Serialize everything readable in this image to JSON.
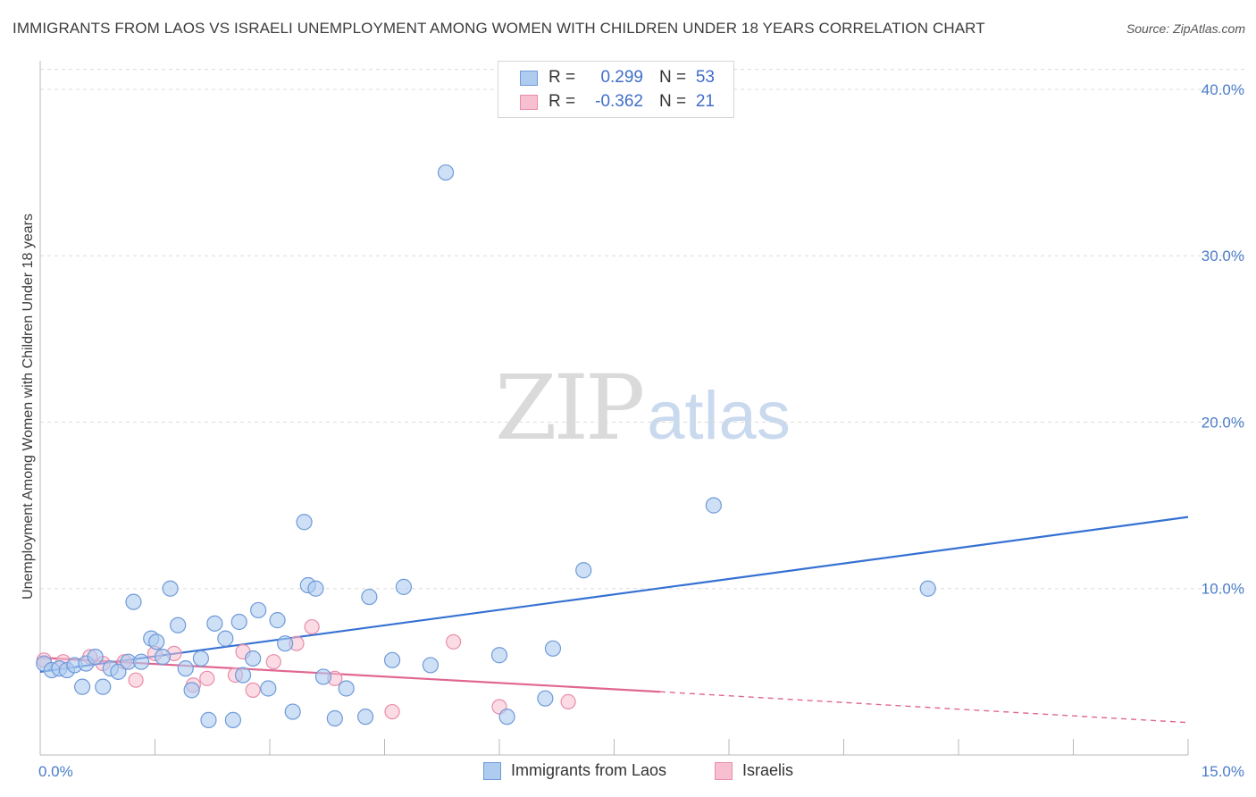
{
  "title": "IMMIGRANTS FROM LAOS VS ISRAELI UNEMPLOYMENT AMONG WOMEN WITH CHILDREN UNDER 18 YEARS CORRELATION CHART",
  "source": "Source: ZipAtlas.com",
  "watermark": {
    "left": "ZIP",
    "right": "atlas"
  },
  "legend": {
    "rows": [
      {
        "r_label": "R =",
        "r_value": "0.299",
        "n_label": "N =",
        "n_value": "53"
      },
      {
        "r_label": "R =",
        "r_value": "-0.362",
        "n_label": "N =",
        "n_value": "21"
      }
    ]
  },
  "colors": {
    "laos_fill": "#aecbf0",
    "laos_stroke": "#6f9ad9",
    "laos_line": "#3571d3",
    "isr_fill": "#f7bfd0",
    "isr_stroke": "#e88daa",
    "isr_line": "#e0678f",
    "grid": "#dcdcdc",
    "tick_text": "#4a7cc9"
  },
  "chart_data": {
    "type": "scatter",
    "title": "IMMIGRANTS FROM LAOS VS ISRAELI UNEMPLOYMENT AMONG WOMEN WITH CHILDREN UNDER 18 YEARS CORRELATION CHART",
    "xlabel": "",
    "ylabel": "Unemployment Among Women with Children Under 18 years",
    "xlim": [
      0,
      15
    ],
    "ylim": [
      0,
      41.5
    ],
    "x_tick_labels": [
      "0.0%",
      "15.0%"
    ],
    "y_ticks": [
      10,
      20,
      30,
      40
    ],
    "y_tick_labels": [
      "10.0%",
      "20.0%",
      "30.0%",
      "40.0%"
    ],
    "grid": true,
    "legend_position": "top-center",
    "series": [
      {
        "name": "Immigrants from Laos",
        "points": [
          [
            0.05,
            5.5
          ],
          [
            0.15,
            5.1
          ],
          [
            0.25,
            5.2
          ],
          [
            0.35,
            5.1
          ],
          [
            0.45,
            5.4
          ],
          [
            0.55,
            4.1
          ],
          [
            0.6,
            5.5
          ],
          [
            0.72,
            5.9
          ],
          [
            0.82,
            4.1
          ],
          [
            0.92,
            5.2
          ],
          [
            1.02,
            5.0
          ],
          [
            1.15,
            5.6
          ],
          [
            1.22,
            9.2
          ],
          [
            1.32,
            5.6
          ],
          [
            1.45,
            7.0
          ],
          [
            1.52,
            6.8
          ],
          [
            1.6,
            5.9
          ],
          [
            1.7,
            10.0
          ],
          [
            1.8,
            7.8
          ],
          [
            1.9,
            5.2
          ],
          [
            1.98,
            3.9
          ],
          [
            2.1,
            5.8
          ],
          [
            2.2,
            2.1
          ],
          [
            2.28,
            7.9
          ],
          [
            2.42,
            7.0
          ],
          [
            2.52,
            2.1
          ],
          [
            2.6,
            8.0
          ],
          [
            2.65,
            4.8
          ],
          [
            2.78,
            5.8
          ],
          [
            2.85,
            8.7
          ],
          [
            2.98,
            4.0
          ],
          [
            3.1,
            8.1
          ],
          [
            3.2,
            6.7
          ],
          [
            3.3,
            2.6
          ],
          [
            3.45,
            14.0
          ],
          [
            3.5,
            10.2
          ],
          [
            3.6,
            10.0
          ],
          [
            3.7,
            4.7
          ],
          [
            3.85,
            2.2
          ],
          [
            4.0,
            4.0
          ],
          [
            4.25,
            2.3
          ],
          [
            4.3,
            9.5
          ],
          [
            4.6,
            5.7
          ],
          [
            4.75,
            10.1
          ],
          [
            5.1,
            5.4
          ],
          [
            5.3,
            35.0
          ],
          [
            6.0,
            6.0
          ],
          [
            6.1,
            2.3
          ],
          [
            6.6,
            3.4
          ],
          [
            6.7,
            6.4
          ],
          [
            7.1,
            11.1
          ],
          [
            8.8,
            15.0
          ],
          [
            11.6,
            10.0
          ]
        ],
        "trend": {
          "x": [
            0,
            15
          ],
          "y": [
            5.0,
            14.3
          ]
        }
      },
      {
        "name": "Israelis",
        "points": [
          [
            0.05,
            5.7
          ],
          [
            0.3,
            5.6
          ],
          [
            0.65,
            5.9
          ],
          [
            0.82,
            5.5
          ],
          [
            1.1,
            5.6
          ],
          [
            1.25,
            4.5
          ],
          [
            1.5,
            6.1
          ],
          [
            1.75,
            6.1
          ],
          [
            2.0,
            4.2
          ],
          [
            2.18,
            4.6
          ],
          [
            2.55,
            4.8
          ],
          [
            2.65,
            6.2
          ],
          [
            2.78,
            3.9
          ],
          [
            3.05,
            5.6
          ],
          [
            3.35,
            6.7
          ],
          [
            3.55,
            7.7
          ],
          [
            3.85,
            4.6
          ],
          [
            4.6,
            2.6
          ],
          [
            5.4,
            6.8
          ],
          [
            6.0,
            2.9
          ],
          [
            6.9,
            3.2
          ]
        ],
        "trend": {
          "x": [
            0,
            8.1
          ],
          "y": [
            5.85,
            3.8
          ]
        },
        "trend_extension": {
          "x": [
            8.1,
            15
          ],
          "y": [
            3.8,
            1.95
          ]
        }
      }
    ]
  }
}
